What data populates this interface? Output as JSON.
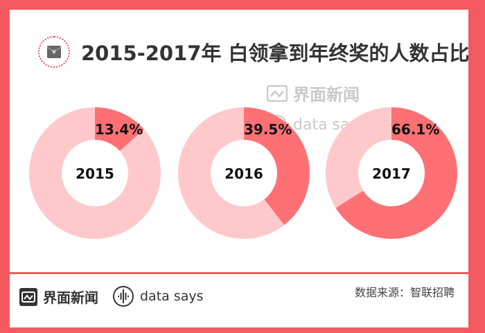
{
  "title": "2015-2017年 白领拿到年终奖的人数占比",
  "watermark": {
    "brand": "界面新闻",
    "datasays": "data says"
  },
  "footer": {
    "brand": "界面新闻",
    "datasays": "data says",
    "source": "数据来源：智联招聘"
  },
  "colors": {
    "accent": "#f25a60",
    "slice": "#ff7074",
    "rest": "#ffc9cb"
  },
  "chart_data": [
    {
      "type": "pie",
      "categories": [
        "2015"
      ],
      "values": [
        13.4
      ],
      "label": "2015",
      "value_label": "13.4%"
    },
    {
      "type": "pie",
      "categories": [
        "2016"
      ],
      "values": [
        39.5
      ],
      "label": "2016",
      "value_label": "39.5%"
    },
    {
      "type": "pie",
      "categories": [
        "2017"
      ],
      "values": [
        66.1
      ],
      "label": "2017",
      "value_label": "66.1%"
    }
  ]
}
